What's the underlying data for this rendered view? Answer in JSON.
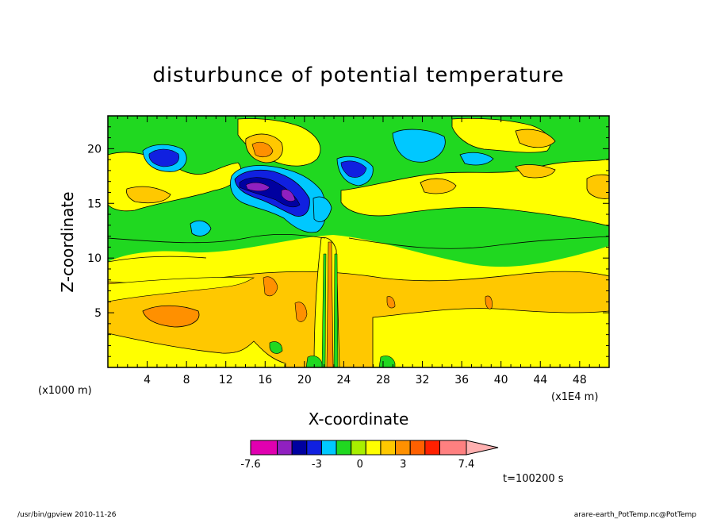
{
  "chart_data": {
    "type": "heatmap",
    "title": "disturbunce of potential temperature",
    "xlabel": "X-coordinate",
    "ylabel": "Z-coordinate",
    "x_scale_note": "(x1E4 m)",
    "y_scale_note": "(x1000 m)",
    "xlim": [
      0,
      51
    ],
    "ylim": [
      0,
      23
    ],
    "x_ticks": [
      4,
      8,
      12,
      16,
      20,
      24,
      28,
      32,
      36,
      40,
      44,
      48
    ],
    "y_ticks": [
      5,
      10,
      15,
      20
    ],
    "colorbar": {
      "min_label": "-7.6",
      "max_label": "7.4",
      "tick_labels": [
        "-7.6",
        "-3",
        "0",
        "3",
        "7.4"
      ],
      "tick_values": [
        -7.6,
        -3,
        0,
        3,
        7.4
      ],
      "level_colors": [
        "#e000b0",
        "#9020c0",
        "#0000a0",
        "#1020e0",
        "#00c8ff",
        "#20d820",
        "#a8f000",
        "#ffff00",
        "#ffc800",
        "#ff9000",
        "#ff6000",
        "#ff2000",
        "#ff8080",
        "#ffb0b0"
      ]
    },
    "time_label": "t=100200 s"
  },
  "footer": {
    "left": "/usr/bin/gpview   2010-11-26",
    "right": "arare-earth_PotTemp.nc@PotTemp"
  },
  "colors": {
    "background": "#ffffff",
    "yellow": "#ffff00",
    "green": "#20d820",
    "gold": "#ffc800",
    "orange": "#ff9000",
    "cyan": "#00c8ff",
    "blue": "#1020e0",
    "navy": "#0000a0",
    "purple": "#9020c0"
  }
}
